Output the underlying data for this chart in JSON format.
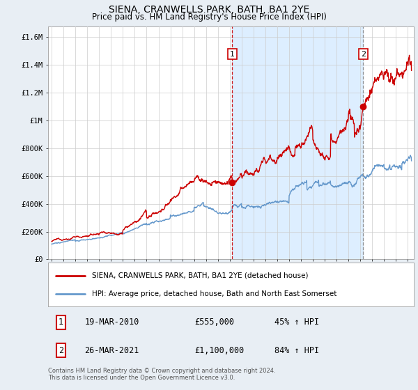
{
  "title": "SIENA, CRANWELLS PARK, BATH, BA1 2YE",
  "subtitle": "Price paid vs. HM Land Registry's House Price Index (HPI)",
  "ylabel_ticks": [
    "£0",
    "£200K",
    "£400K",
    "£600K",
    "£800K",
    "£1M",
    "£1.2M",
    "£1.4M",
    "£1.6M"
  ],
  "ytick_values": [
    0,
    200000,
    400000,
    600000,
    800000,
    1000000,
    1200000,
    1400000,
    1600000
  ],
  "ylim": [
    0,
    1680000
  ],
  "xlim_start": 1994.7,
  "xlim_end": 2025.5,
  "xticks": [
    1995,
    1996,
    1997,
    1998,
    1999,
    2000,
    2001,
    2002,
    2003,
    2004,
    2005,
    2006,
    2007,
    2008,
    2009,
    2010,
    2011,
    2012,
    2013,
    2014,
    2015,
    2016,
    2017,
    2018,
    2019,
    2020,
    2021,
    2022,
    2023,
    2024,
    2025
  ],
  "red_color": "#cc0000",
  "blue_color": "#6699cc",
  "shade_color": "#ddeeff",
  "vline1_x": 2010.21,
  "vline2_x": 2021.23,
  "marker1_x": 2010.21,
  "marker1_y": 555000,
  "marker2_x": 2021.23,
  "marker2_y": 1100000,
  "legend_label_red": "SIENA, CRANWELLS PARK, BATH, BA1 2YE (detached house)",
  "legend_label_blue": "HPI: Average price, detached house, Bath and North East Somerset",
  "sale1_date": "19-MAR-2010",
  "sale1_price": "£555,000",
  "sale1_hpi": "45% ↑ HPI",
  "sale2_date": "26-MAR-2021",
  "sale2_price": "£1,100,000",
  "sale2_hpi": "84% ↑ HPI",
  "footnote": "Contains HM Land Registry data © Crown copyright and database right 2024.\nThis data is licensed under the Open Government Licence v3.0.",
  "background_color": "#e8eef4",
  "plot_bg_color": "#ffffff",
  "grid_color": "#cccccc"
}
